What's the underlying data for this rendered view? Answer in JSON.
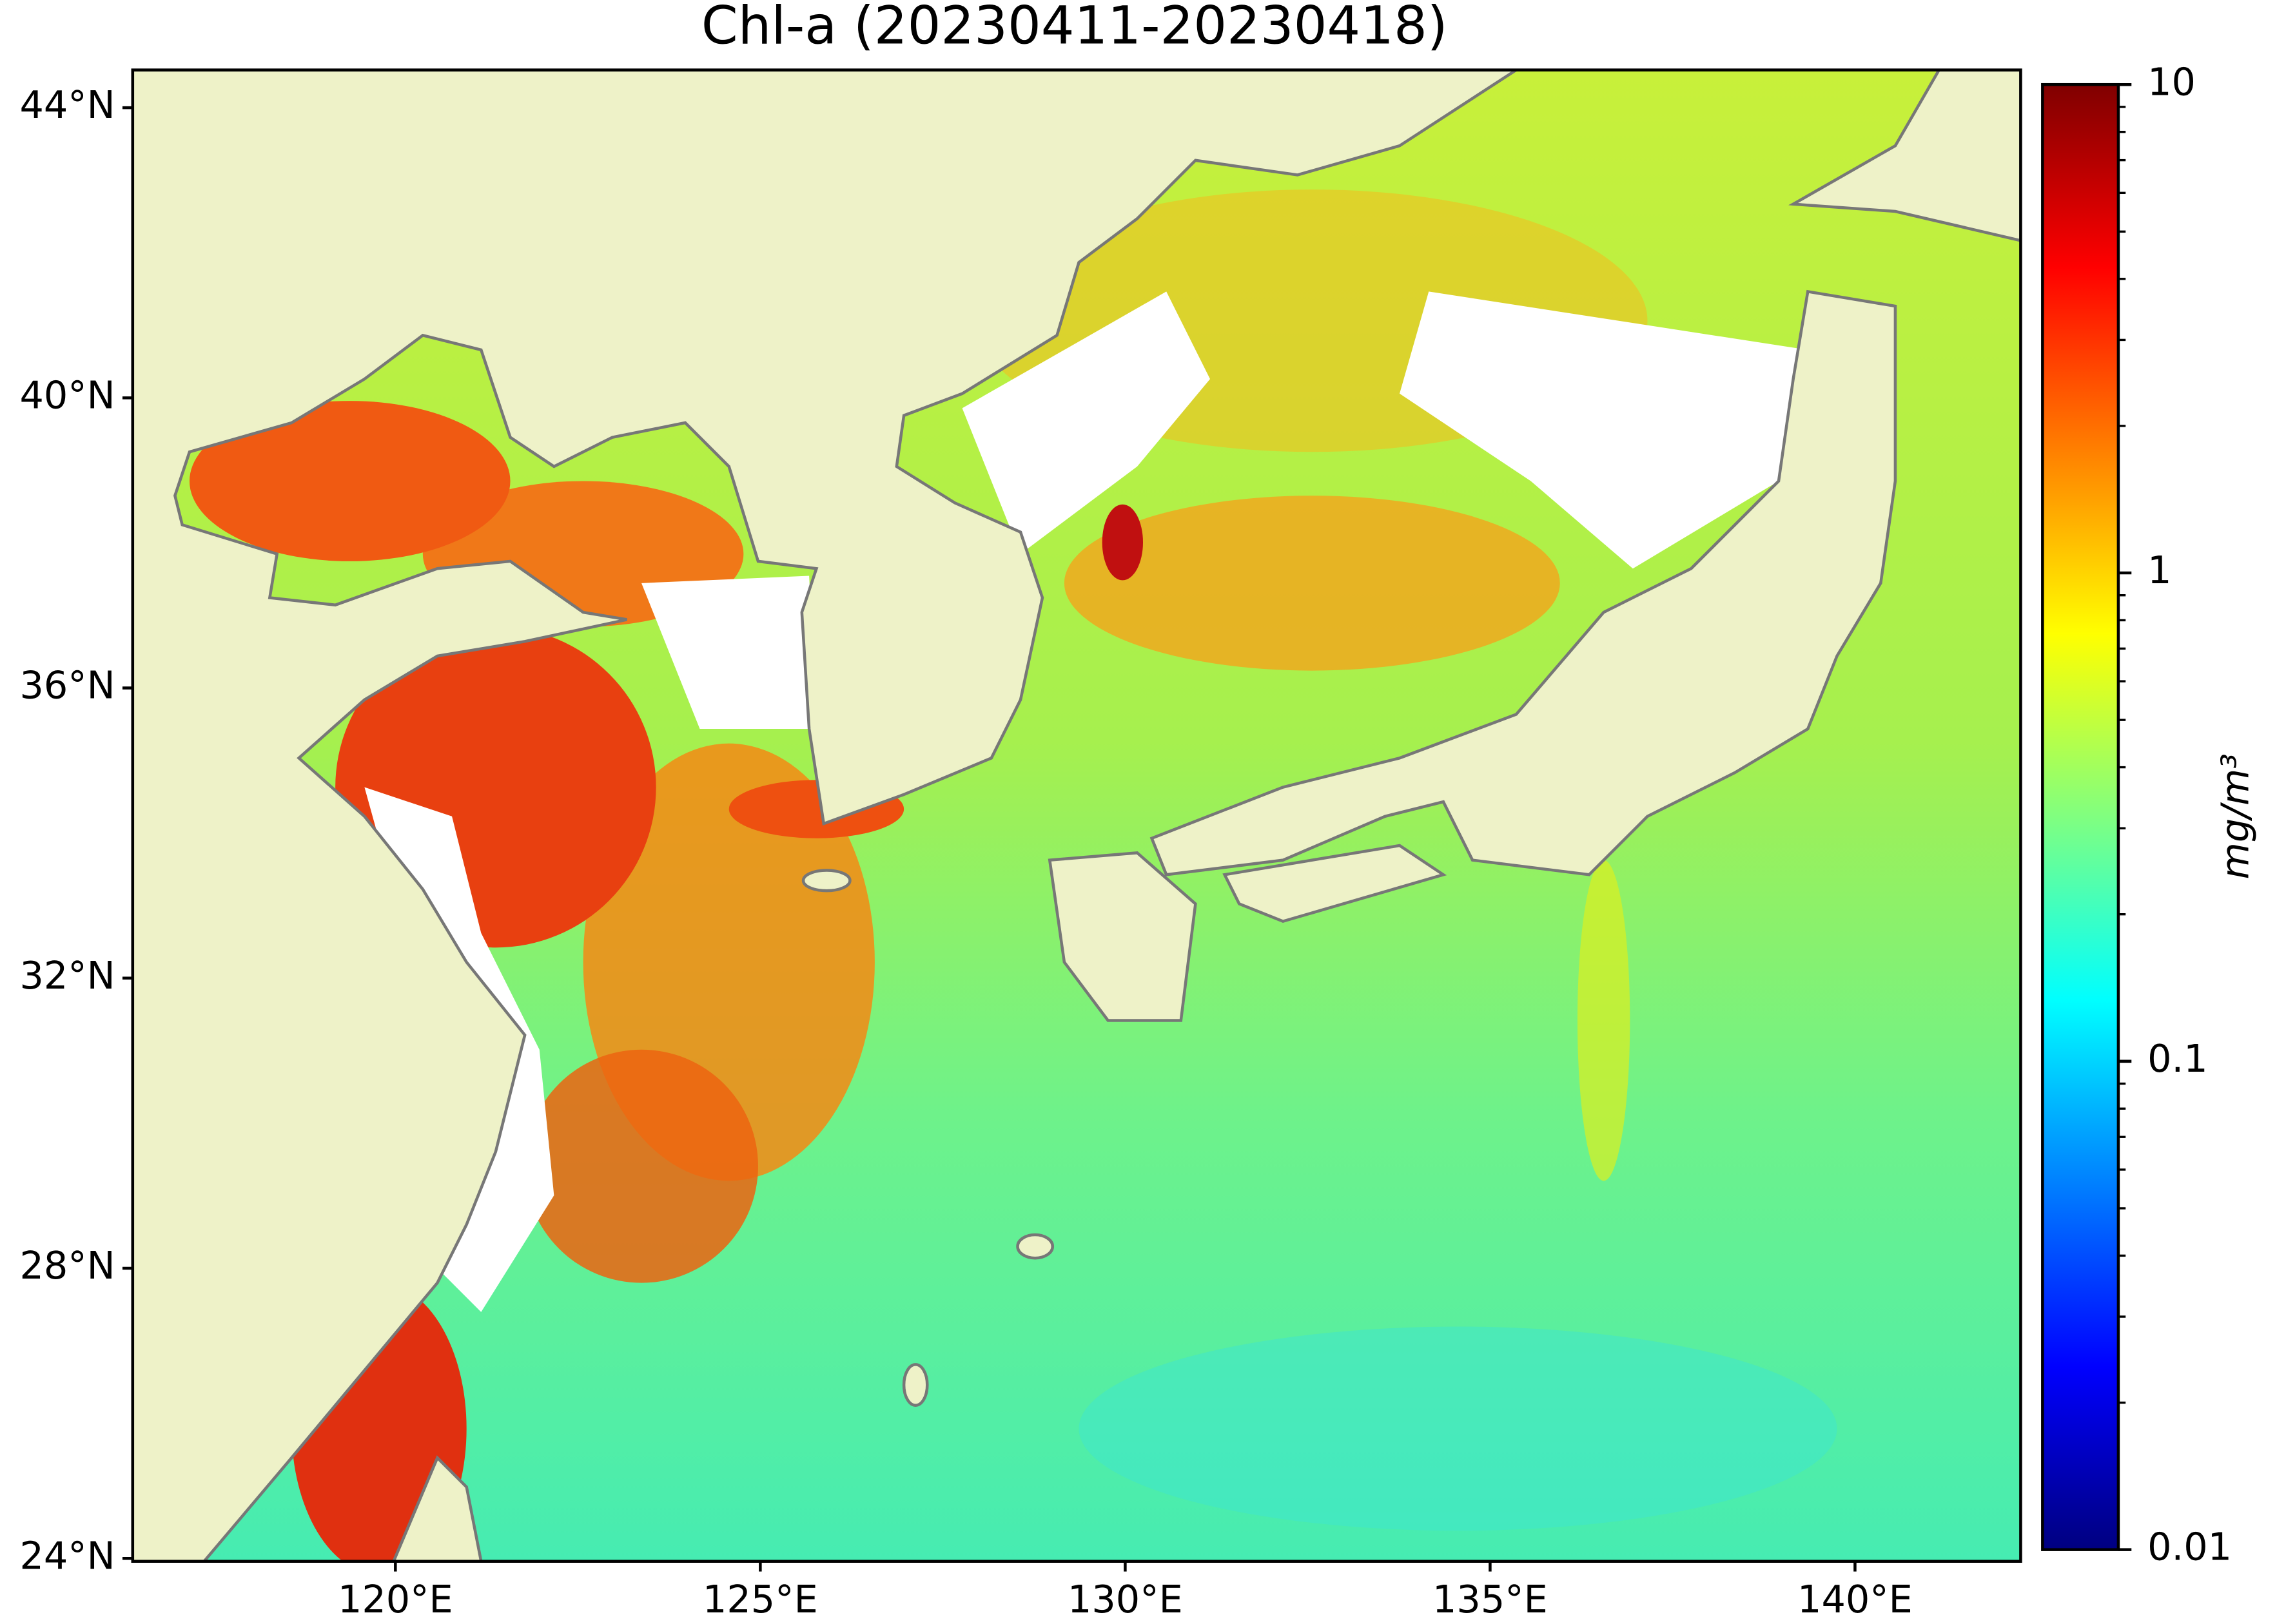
{
  "chart_data": {
    "type": "map",
    "title": "Chl-a (20230411-20230418)",
    "xlim": [
      116.4,
      142.27
    ],
    "ylim": [
      23.96,
      44.52
    ],
    "xticks": [
      {
        "value": 120,
        "label": "120°E"
      },
      {
        "value": 125,
        "label": "125°E"
      },
      {
        "value": 130,
        "label": "130°E"
      },
      {
        "value": 135,
        "label": "135°E"
      },
      {
        "value": 140,
        "label": "140°E"
      }
    ],
    "yticks": [
      {
        "value": 24,
        "label": "24°N"
      },
      {
        "value": 28,
        "label": "28°N"
      },
      {
        "value": 32,
        "label": "32°N"
      },
      {
        "value": 36,
        "label": "36°N"
      },
      {
        "value": 40,
        "label": "40°N"
      },
      {
        "value": 44,
        "label": "44°N"
      }
    ],
    "colorbar": {
      "label": "mg/m³",
      "lim": [
        0.01,
        10
      ],
      "ticks": [
        0.01,
        0.1,
        1,
        10
      ],
      "log": true,
      "colormap": "jet"
    }
  }
}
